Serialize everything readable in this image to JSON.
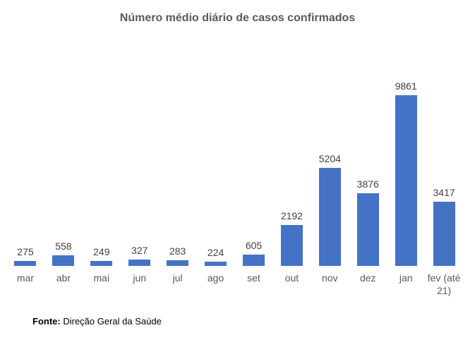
{
  "chart_data": {
    "type": "bar",
    "title": "Número médio diário de casos confirmados",
    "categories": [
      "mar",
      "abr",
      "mai",
      "jun",
      "jul",
      "ago",
      "set",
      "out",
      "nov",
      "dez",
      "jan",
      "fev (até 21)"
    ],
    "values": [
      275,
      558,
      249,
      327,
      283,
      224,
      605,
      2192,
      5204,
      3876,
      9861,
      3417
    ],
    "xlabel": "",
    "ylabel": "",
    "ylim": [
      0,
      9861
    ],
    "data_labels": true,
    "gridlines": false,
    "legend": "none",
    "bar_color": "#4472C4",
    "title_color": "#595959",
    "data_label_color": "#404040",
    "axis_label_color": "#595959",
    "source_note": {
      "prefix": "Fonte:",
      "text": "Direção Geral da Saúde"
    }
  }
}
